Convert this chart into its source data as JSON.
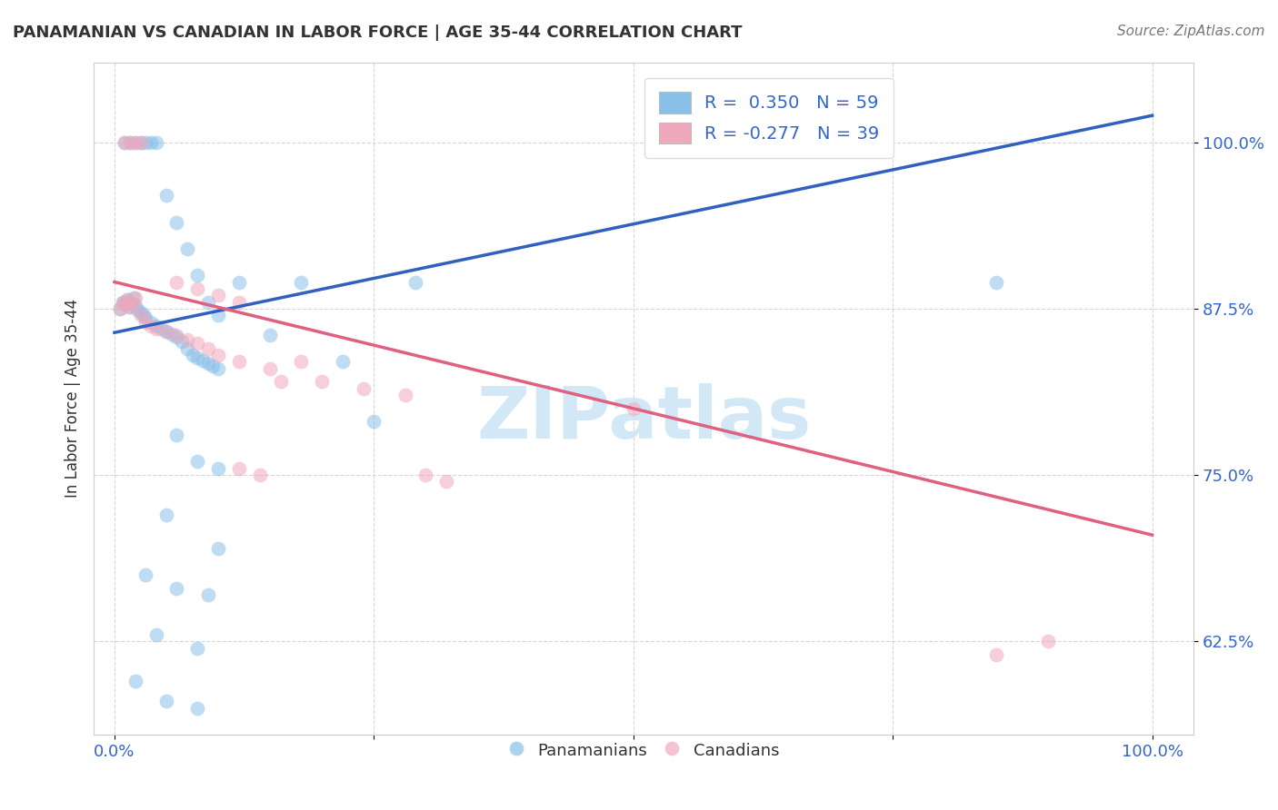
{
  "title": "PANAMANIAN VS CANADIAN IN LABOR FORCE | AGE 35-44 CORRELATION CHART",
  "source_text": "Source: ZipAtlas.com",
  "ylabel": "In Labor Force | Age 35-44",
  "y_ticks": [
    0.625,
    0.75,
    0.875,
    1.0
  ],
  "y_tick_labels": [
    "62.5%",
    "75.0%",
    "87.5%",
    "100.0%"
  ],
  "x_ticks": [
    0.0,
    0.25,
    0.5,
    0.75,
    1.0
  ],
  "x_tick_labels": [
    "0.0%",
    "",
    "",
    "",
    "100.0%"
  ],
  "xlim": [
    -0.02,
    1.04
  ],
  "ylim": [
    0.555,
    1.06
  ],
  "legend_labels": [
    "Panamanians",
    "Canadians"
  ],
  "blue_color": "#89c0e8",
  "pink_color": "#f0a8bc",
  "blue_line_color": "#3060c0",
  "pink_line_color": "#e06080",
  "watermark_text": "ZIPatlas",
  "watermark_color": "#cce5f5",
  "blue_r": 0.35,
  "blue_n": 59,
  "pink_r": -0.277,
  "pink_n": 39,
  "blue_line_x0": 0.0,
  "blue_line_y0": 0.857,
  "blue_line_x1": 1.0,
  "blue_line_y1": 1.02,
  "pink_line_x0": 0.0,
  "pink_line_y0": 0.895,
  "pink_line_x1": 1.0,
  "pink_line_y1": 0.705,
  "blue_scatter_x": [
    0.005,
    0.008,
    0.01,
    0.012,
    0.014,
    0.016,
    0.018,
    0.02,
    0.022,
    0.025,
    0.028,
    0.03,
    0.035,
    0.04,
    0.045,
    0.05,
    0.055,
    0.06,
    0.065,
    0.07,
    0.075,
    0.08,
    0.085,
    0.09,
    0.095,
    0.1,
    0.01,
    0.015,
    0.02,
    0.025,
    0.03,
    0.035,
    0.04,
    0.05,
    0.06,
    0.07,
    0.08,
    0.09,
    0.1,
    0.12,
    0.15,
    0.18,
    0.22,
    0.25,
    0.29,
    0.06,
    0.08,
    0.1,
    0.05,
    0.1,
    0.03,
    0.06,
    0.09,
    0.04,
    0.08,
    0.85,
    0.02,
    0.05,
    0.08
  ],
  "blue_scatter_y": [
    0.875,
    0.88,
    0.878,
    0.882,
    0.876,
    0.879,
    0.883,
    0.877,
    0.874,
    0.872,
    0.87,
    0.868,
    0.865,
    0.862,
    0.86,
    0.858,
    0.856,
    0.854,
    0.85,
    0.845,
    0.84,
    0.838,
    0.836,
    0.834,
    0.832,
    0.83,
    1.0,
    1.0,
    1.0,
    1.0,
    1.0,
    1.0,
    1.0,
    0.96,
    0.94,
    0.92,
    0.9,
    0.88,
    0.87,
    0.895,
    0.855,
    0.895,
    0.835,
    0.79,
    0.895,
    0.78,
    0.76,
    0.755,
    0.72,
    0.695,
    0.675,
    0.665,
    0.66,
    0.63,
    0.62,
    0.895,
    0.595,
    0.58,
    0.575
  ],
  "pink_scatter_x": [
    0.005,
    0.008,
    0.01,
    0.012,
    0.015,
    0.018,
    0.02,
    0.025,
    0.03,
    0.035,
    0.04,
    0.05,
    0.06,
    0.07,
    0.08,
    0.09,
    0.1,
    0.12,
    0.15,
    0.18,
    0.01,
    0.015,
    0.02,
    0.025,
    0.06,
    0.08,
    0.1,
    0.12,
    0.16,
    0.2,
    0.24,
    0.28,
    0.12,
    0.14,
    0.3,
    0.32,
    0.5,
    0.85,
    0.9
  ],
  "pink_scatter_y": [
    0.875,
    0.88,
    0.878,
    0.882,
    0.876,
    0.879,
    0.883,
    0.87,
    0.865,
    0.862,
    0.86,
    0.858,
    0.855,
    0.852,
    0.849,
    0.845,
    0.84,
    0.835,
    0.83,
    0.835,
    1.0,
    1.0,
    1.0,
    1.0,
    0.895,
    0.89,
    0.885,
    0.88,
    0.82,
    0.82,
    0.815,
    0.81,
    0.755,
    0.75,
    0.75,
    0.745,
    0.8,
    0.615,
    0.625
  ]
}
